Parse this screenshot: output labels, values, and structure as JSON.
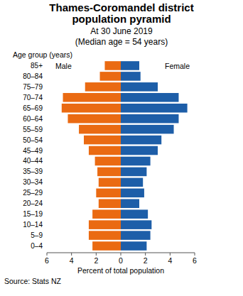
{
  "chart_data": {
    "type": "population_pyramid",
    "title": "Thames-Coromandel district population pyramid",
    "subtitle": "At 30 June 2019",
    "annotation": "(Median age = 54 years)",
    "y_label": "Age group (years)",
    "x_label": "Percent of total population",
    "source": "Source: Stats NZ",
    "orientation": "horizontal",
    "categories": [
      "0–4",
      "5–9",
      "10–14",
      "15–19",
      "20–24",
      "25–29",
      "30–34",
      "35–39",
      "40–44",
      "45–49",
      "50–54",
      "55–59",
      "60–64",
      "65–69",
      "70–74",
      "75–79",
      "80–84",
      "85+"
    ],
    "series": [
      {
        "name": "Male",
        "color": "#ea6a12",
        "values": [
          2.3,
          2.6,
          2.6,
          2.3,
          1.8,
          2.0,
          1.8,
          1.9,
          2.1,
          2.6,
          3.0,
          3.4,
          4.3,
          4.8,
          4.7,
          2.9,
          1.7,
          1.3
        ]
      },
      {
        "name": "Female",
        "color": "#1d5ea8",
        "values": [
          2.1,
          2.4,
          2.5,
          2.2,
          1.5,
          1.9,
          1.8,
          2.1,
          2.4,
          3.0,
          3.3,
          4.3,
          4.7,
          5.4,
          4.7,
          3.0,
          1.6,
          1.5
        ]
      }
    ],
    "xlim": [
      0,
      6
    ],
    "xticks": [
      0,
      2,
      4,
      6
    ],
    "grid": false
  }
}
